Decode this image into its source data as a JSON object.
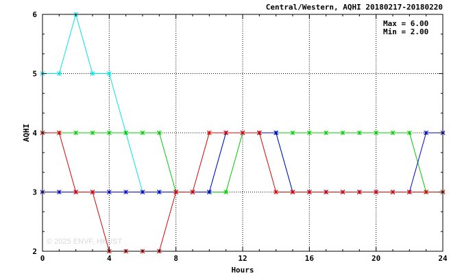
{
  "chart_data": {
    "type": "line",
    "title": "Central/Western, AQHI 20180217-20180220",
    "xlabel": "Hours",
    "ylabel": "AQHI",
    "xlim": [
      0,
      24
    ],
    "ylim": [
      2,
      6
    ],
    "xticks": [
      0,
      4,
      8,
      12,
      16,
      20,
      24
    ],
    "yticks": [
      2,
      3,
      4,
      5,
      6
    ],
    "grid": true,
    "annotations": [
      "Max = 6.00",
      "Min = 2.00"
    ],
    "watermark": "© 2025  ENVF, HKUST",
    "x": [
      0,
      1,
      2,
      3,
      4,
      5,
      6,
      7,
      8,
      9,
      10,
      11,
      12,
      13,
      14,
      15,
      16,
      17,
      18,
      19,
      20,
      21,
      22,
      23,
      24
    ],
    "series": [
      {
        "color": "#00e5e5",
        "values": [
          5,
          5,
          6,
          5,
          5,
          4,
          3,
          3,
          3,
          3,
          3,
          4,
          4,
          4,
          4,
          3,
          3,
          3,
          3,
          3,
          3,
          3,
          3,
          3,
          3
        ]
      },
      {
        "color": "#00cc00",
        "values": [
          4,
          4,
          4,
          4,
          4,
          4,
          4,
          4,
          3,
          3,
          3,
          3,
          4,
          4,
          4,
          4,
          4,
          4,
          4,
          4,
          4,
          4,
          4,
          3,
          3
        ]
      },
      {
        "color": "#0000cc",
        "values": [
          3,
          3,
          3,
          3,
          3,
          3,
          3,
          3,
          3,
          3,
          3,
          4,
          4,
          4,
          4,
          3,
          3,
          3,
          3,
          3,
          3,
          3,
          3,
          4,
          4
        ]
      },
      {
        "color": "#dd0000",
        "values": [
          4,
          4,
          3,
          3,
          2,
          2,
          2,
          2,
          3,
          3,
          4,
          4,
          4,
          4,
          3,
          3,
          3,
          3,
          3,
          3,
          3,
          3,
          3,
          3,
          3
        ]
      }
    ]
  }
}
